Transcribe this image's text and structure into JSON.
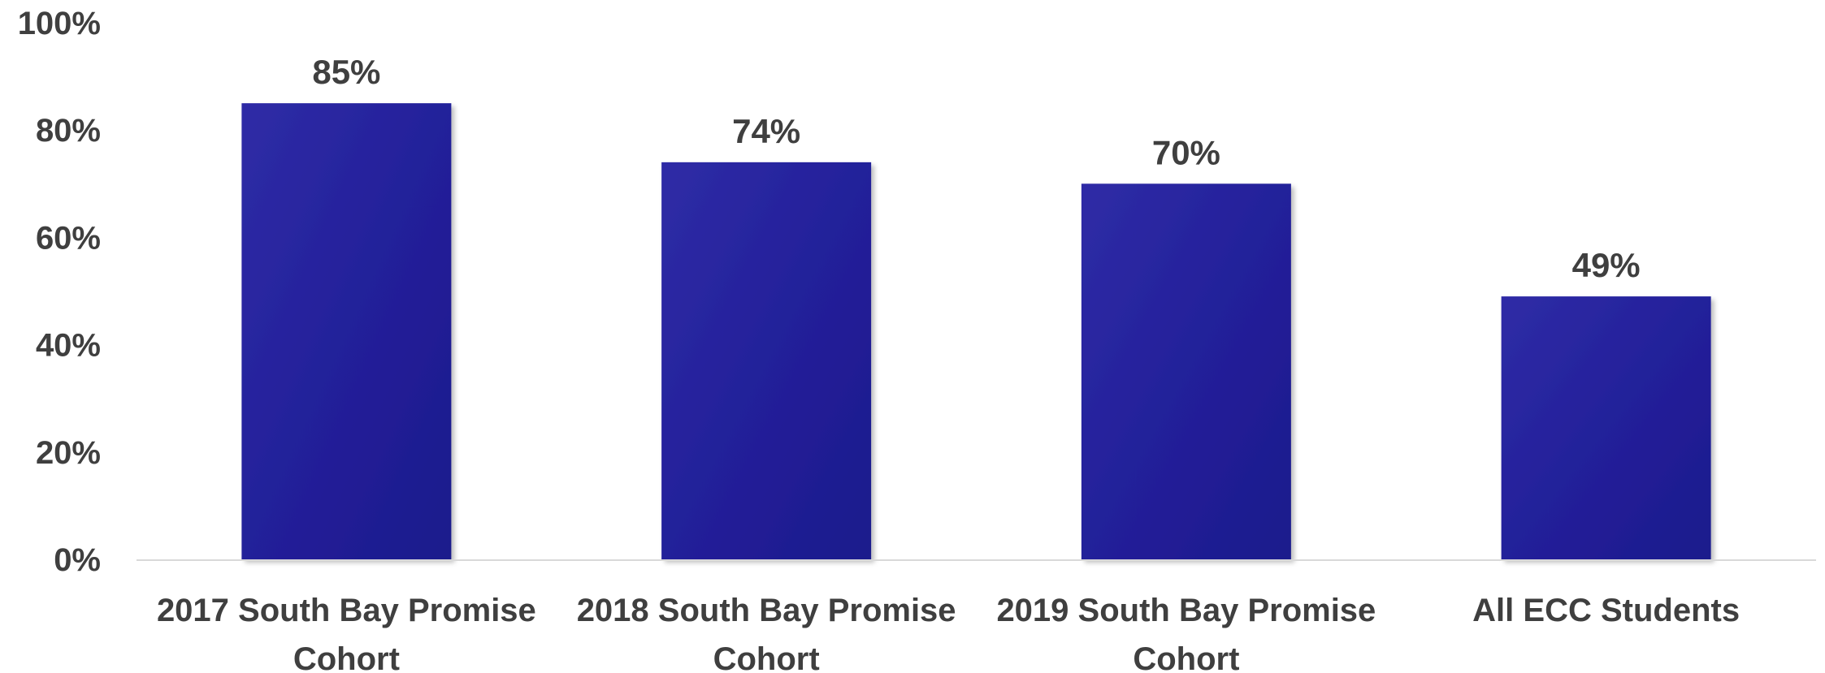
{
  "chart_data": {
    "type": "bar",
    "categories": [
      [
        "2017 South Bay Promise",
        "Cohort"
      ],
      [
        "2018 South Bay Promise",
        "Cohort"
      ],
      [
        "2019 South Bay Promise",
        "Cohort"
      ],
      [
        "All ECC Students"
      ]
    ],
    "values": [
      85,
      74,
      70,
      49
    ],
    "data_labels": [
      "85%",
      "74%",
      "70%",
      "49%"
    ],
    "y_ticks": [
      0,
      20,
      40,
      60,
      80,
      100
    ],
    "y_tick_labels": [
      "0%",
      "20%",
      "40%",
      "60%",
      "80%",
      "100%"
    ],
    "ylim": [
      0,
      100
    ],
    "title": "",
    "xlabel": "",
    "ylabel": "",
    "grid": false,
    "legend": "none",
    "colors": {
      "bar": "#23209a",
      "bar_light": "#2f2ca6",
      "bar_dark": "#1c1a8c",
      "text": "#3f3f3f",
      "axis": "#d9d9d9"
    }
  }
}
